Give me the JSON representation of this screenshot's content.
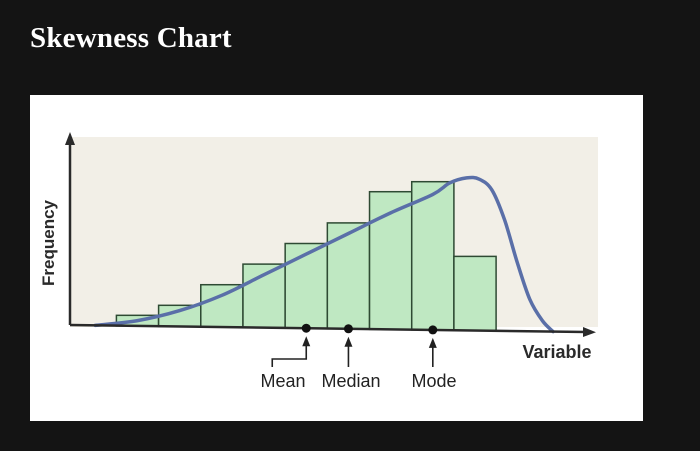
{
  "page": {
    "title": "Skewness Chart"
  },
  "chart_data": {
    "type": "bar",
    "subtype": "histogram with left-skewed frequency curve",
    "xlabel": "Variable",
    "ylabel": "Frequency",
    "values": [
      1,
      2,
      4,
      6,
      8,
      10,
      13,
      14,
      7
    ],
    "curve": [
      [
        0,
        0
      ],
      [
        1,
        0.5
      ],
      [
        2,
        1.5
      ],
      [
        3,
        3
      ],
      [
        4,
        5
      ],
      [
        5,
        7
      ],
      [
        6,
        9
      ],
      [
        7,
        11
      ],
      [
        8,
        12.8
      ],
      [
        8.4,
        13.9
      ],
      [
        8.8,
        14.4
      ],
      [
        9.1,
        14.3
      ],
      [
        9.4,
        13.3
      ],
      [
        9.7,
        10.5
      ],
      [
        10,
        6.5
      ],
      [
        10.3,
        3
      ],
      [
        10.6,
        1
      ],
      [
        10.85,
        0
      ]
    ],
    "ylim": [
      0,
      17
    ],
    "xlim": [
      -0.6,
      12.2
    ],
    "markers": [
      {
        "label": "Mean",
        "x": 5.0
      },
      {
        "label": "Median",
        "x": 6.0
      },
      {
        "label": "Mode",
        "x": 8.0
      }
    ],
    "grid": false,
    "colors": {
      "bar_fill": "#bfe8c2",
      "bar_stroke": "#2e4a33",
      "curve": "#5a6fa8",
      "axis": "#2a2a2a",
      "panel_bg": "#ffffff",
      "plot_bg": "#f2efe7"
    }
  }
}
